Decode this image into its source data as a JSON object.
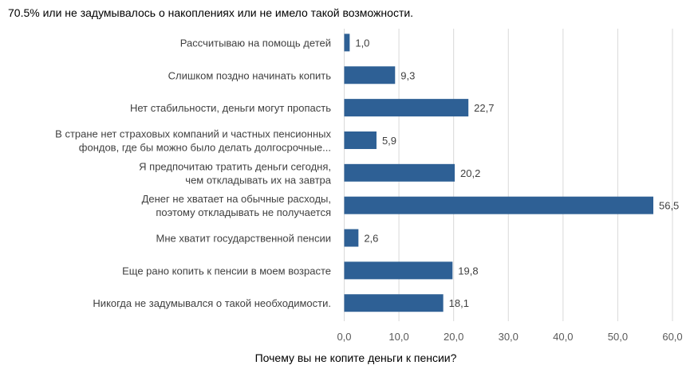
{
  "header_text": "70.5% или не задумывалось о накоплениях или не имело такой возможности.",
  "chart_data": {
    "type": "bar",
    "orientation": "horizontal",
    "xlabel": "Почему вы не копите деньги к пенсии?",
    "xlim": [
      0,
      60
    ],
    "xticks": [
      0,
      10,
      20,
      30,
      40,
      50,
      60
    ],
    "xtick_labels": [
      "0,0",
      "10,0",
      "20,0",
      "30,0",
      "40,0",
      "50,0",
      "60,0"
    ],
    "grid": true,
    "bar_color": "#2e6095",
    "categories": [
      [
        "Рассчитываю на помощь детей"
      ],
      [
        "Слишком поздно начинать копить"
      ],
      [
        "Нет стабильности, деньги могут пропасть"
      ],
      [
        "В стране нет страховых компаний и частных пенсионных",
        "фондов, где бы можно было делать долгосрочные..."
      ],
      [
        "Я предпочитаю тратить деньги сегодня,",
        "чем откладывать их на завтра"
      ],
      [
        "Денег не хватает на обычные расходы,",
        "поэтому откладывать не получается"
      ],
      [
        "Мне хватит государственной пенсии"
      ],
      [
        "Еще рано копить к пенсии в моем возрасте"
      ],
      [
        "Никогда не задумывался о такой необходимости."
      ]
    ],
    "values": [
      1.0,
      9.3,
      22.7,
      5.9,
      20.2,
      56.5,
      2.6,
      19.8,
      18.1
    ],
    "value_labels": [
      "1,0",
      "9,3",
      "22,7",
      "5,9",
      "20,2",
      "56,5",
      "2,6",
      "19,8",
      "18,1"
    ]
  }
}
